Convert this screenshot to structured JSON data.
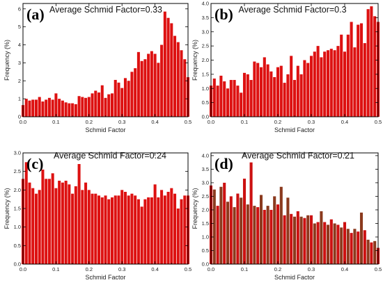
{
  "chart_data": [
    {
      "type": "bar",
      "panel_label": "(a)",
      "title": "Average Schmid Factor=0.33",
      "xlabel": "Schmid Factor",
      "ylabel": "Frequency (%)",
      "xlim": [
        0,
        0.5
      ],
      "ylim": [
        0,
        6.3
      ],
      "xticks": [
        "0.0",
        "0.1",
        "0.2",
        "0.3",
        "0.4",
        "0.5"
      ],
      "yticks": [
        "0",
        "1",
        "2",
        "3",
        "4",
        "5",
        "6"
      ],
      "ytick_values": [
        0,
        1,
        2,
        3,
        4,
        5,
        6
      ],
      "bar_color": "#dd1111",
      "bar_width": 0.0085,
      "x": [
        0.0,
        0.01,
        0.02,
        0.03,
        0.04,
        0.05,
        0.06,
        0.07,
        0.08,
        0.09,
        0.1,
        0.11,
        0.12,
        0.13,
        0.14,
        0.15,
        0.16,
        0.17,
        0.18,
        0.19,
        0.2,
        0.21,
        0.22,
        0.23,
        0.24,
        0.25,
        0.26,
        0.27,
        0.28,
        0.29,
        0.3,
        0.31,
        0.32,
        0.33,
        0.34,
        0.35,
        0.36,
        0.37,
        0.38,
        0.39,
        0.4,
        0.41,
        0.42,
        0.43,
        0.44,
        0.45,
        0.46,
        0.47,
        0.48,
        0.49,
        0.5
      ],
      "values": [
        0.65,
        1.0,
        0.9,
        0.95,
        0.95,
        1.1,
        0.85,
        0.95,
        1.05,
        0.95,
        1.3,
        1.0,
        0.9,
        0.8,
        0.75,
        0.75,
        0.7,
        1.15,
        1.1,
        1.05,
        1.1,
        1.3,
        1.45,
        1.35,
        1.75,
        1.05,
        1.25,
        1.3,
        2.05,
        1.9,
        1.6,
        2.15,
        2.0,
        2.5,
        2.7,
        3.6,
        3.1,
        3.2,
        3.5,
        3.65,
        3.5,
        3.0,
        4.0,
        5.85,
        5.5,
        5.2,
        4.5,
        4.15,
        3.7,
        3.2,
        2.2
      ]
    },
    {
      "type": "bar",
      "panel_label": "(b)",
      "title": "Average Schmid Factor=0.3",
      "xlabel": "Schmid Factor",
      "ylabel": "Frequency (%)",
      "xlim": [
        0,
        0.5
      ],
      "ylim": [
        0,
        4.0
      ],
      "xticks": [
        "0.0",
        "0.1",
        "0.2",
        "0.3",
        "0.4",
        "0.5"
      ],
      "yticks": [
        "0.0",
        "0.5",
        "1.0",
        "1.5",
        "2.0",
        "2.5",
        "3.0",
        "3.5",
        "4.0"
      ],
      "ytick_values": [
        0,
        0.5,
        1.0,
        1.5,
        2.0,
        2.5,
        3.0,
        3.5,
        4.0
      ],
      "bar_color": "#dd1111",
      "bar_width": 0.0085,
      "x": [
        0.0,
        0.01,
        0.02,
        0.03,
        0.04,
        0.05,
        0.06,
        0.07,
        0.08,
        0.09,
        0.1,
        0.11,
        0.12,
        0.13,
        0.14,
        0.15,
        0.16,
        0.17,
        0.18,
        0.19,
        0.2,
        0.21,
        0.22,
        0.23,
        0.24,
        0.25,
        0.26,
        0.27,
        0.28,
        0.29,
        0.3,
        0.31,
        0.32,
        0.33,
        0.34,
        0.35,
        0.36,
        0.37,
        0.38,
        0.39,
        0.4,
        0.41,
        0.42,
        0.43,
        0.44,
        0.45,
        0.46,
        0.47,
        0.48,
        0.49,
        0.5
      ],
      "values": [
        1.1,
        1.35,
        1.1,
        1.45,
        1.25,
        1.0,
        1.3,
        1.3,
        1.1,
        0.85,
        1.55,
        1.5,
        1.3,
        1.95,
        1.9,
        1.75,
        2.1,
        1.85,
        1.6,
        1.4,
        1.75,
        1.8,
        1.2,
        1.5,
        2.15,
        1.3,
        1.8,
        1.5,
        2.0,
        1.9,
        2.15,
        2.3,
        2.5,
        2.1,
        2.3,
        2.35,
        2.4,
        2.35,
        2.5,
        2.9,
        2.3,
        2.9,
        3.35,
        2.45,
        3.25,
        3.3,
        2.6,
        3.8,
        3.9,
        3.55,
        3.35
      ]
    },
    {
      "type": "bar",
      "panel_label": "(c)",
      "title": "Average Schmid Factor=0.24",
      "xlabel": "Schmid Factor",
      "ylabel": "Frequency (%)",
      "xlim": [
        0,
        0.5
      ],
      "ylim": [
        0,
        3.0
      ],
      "xticks": [
        "0.0",
        "0.1",
        "0.2",
        "0.3",
        "0.4",
        "0.5"
      ],
      "yticks": [
        "0.0",
        "0.5",
        "1.0",
        "1.5",
        "2.0",
        "2.5",
        "3.0"
      ],
      "ytick_values": [
        0,
        0.5,
        1.0,
        1.5,
        2.0,
        2.5,
        3.0
      ],
      "bar_color": "#dd1111",
      "bar_width": 0.0085,
      "x": [
        0.0,
        0.01,
        0.02,
        0.03,
        0.04,
        0.05,
        0.06,
        0.07,
        0.08,
        0.09,
        0.1,
        0.11,
        0.12,
        0.13,
        0.14,
        0.15,
        0.16,
        0.17,
        0.18,
        0.19,
        0.2,
        0.21,
        0.22,
        0.23,
        0.24,
        0.25,
        0.26,
        0.27,
        0.28,
        0.29,
        0.3,
        0.31,
        0.32,
        0.33,
        0.34,
        0.35,
        0.36,
        0.37,
        0.38,
        0.39,
        0.4,
        0.41,
        0.42,
        0.43,
        0.44,
        0.45,
        0.46,
        0.47,
        0.48,
        0.49,
        0.5
      ],
      "values": [
        2.3,
        2.75,
        2.2,
        2.05,
        1.9,
        2.0,
        2.55,
        2.3,
        2.3,
        2.45,
        2.05,
        2.25,
        2.2,
        2.25,
        2.15,
        1.9,
        2.1,
        2.7,
        2.0,
        2.2,
        2.0,
        1.9,
        1.9,
        1.85,
        1.8,
        1.85,
        1.75,
        1.8,
        1.85,
        1.85,
        2.0,
        1.95,
        1.85,
        1.9,
        1.85,
        1.75,
        1.55,
        1.75,
        1.8,
        1.8,
        2.15,
        1.8,
        2.0,
        1.85,
        1.95,
        2.05,
        1.9,
        1.5,
        1.75,
        1.85,
        1.85
      ]
    },
    {
      "type": "bar",
      "panel_label": "(d)",
      "title": "Average Schmid Factor=0.21",
      "xlabel": "Schmid Factor",
      "ylabel": "Frequency (%)",
      "xlim": [
        0,
        0.5
      ],
      "ylim": [
        0,
        4.1
      ],
      "xticks": [
        "0.0",
        "0.1",
        "0.2",
        "0.3",
        "0.4",
        "0.5"
      ],
      "yticks": [
        "0.0",
        "0.5",
        "1.0",
        "1.5",
        "2.0",
        "2.5",
        "3.0",
        "3.5",
        "4.0"
      ],
      "ytick_values": [
        0,
        0.5,
        1.0,
        1.5,
        2.0,
        2.5,
        3.0,
        3.5,
        4.0
      ],
      "bar_color": "#cc1111",
      "bar_color_alt": "#8b3a1e",
      "bar_width": 0.0085,
      "x": [
        0.0,
        0.01,
        0.02,
        0.03,
        0.04,
        0.05,
        0.06,
        0.07,
        0.08,
        0.09,
        0.1,
        0.11,
        0.12,
        0.13,
        0.14,
        0.15,
        0.16,
        0.17,
        0.18,
        0.19,
        0.2,
        0.21,
        0.22,
        0.23,
        0.24,
        0.25,
        0.26,
        0.27,
        0.28,
        0.29,
        0.3,
        0.31,
        0.32,
        0.33,
        0.34,
        0.35,
        0.36,
        0.37,
        0.38,
        0.39,
        0.4,
        0.41,
        0.42,
        0.43,
        0.44,
        0.45,
        0.46,
        0.47,
        0.48,
        0.49,
        0.5
      ],
      "values": [
        2.9,
        2.75,
        2.15,
        2.85,
        3.0,
        2.3,
        2.5,
        2.1,
        2.6,
        2.45,
        3.15,
        2.2,
        3.75,
        2.15,
        2.1,
        2.55,
        2.0,
        2.15,
        2.0,
        2.5,
        2.2,
        2.85,
        1.8,
        2.45,
        1.85,
        1.75,
        1.95,
        1.75,
        1.7,
        1.8,
        1.8,
        1.5,
        1.55,
        1.95,
        1.55,
        1.45,
        1.65,
        1.5,
        1.45,
        1.35,
        1.55,
        1.3,
        1.15,
        1.3,
        1.2,
        1.9,
        1.25,
        0.9,
        0.8,
        0.85,
        0.6
      ]
    }
  ]
}
